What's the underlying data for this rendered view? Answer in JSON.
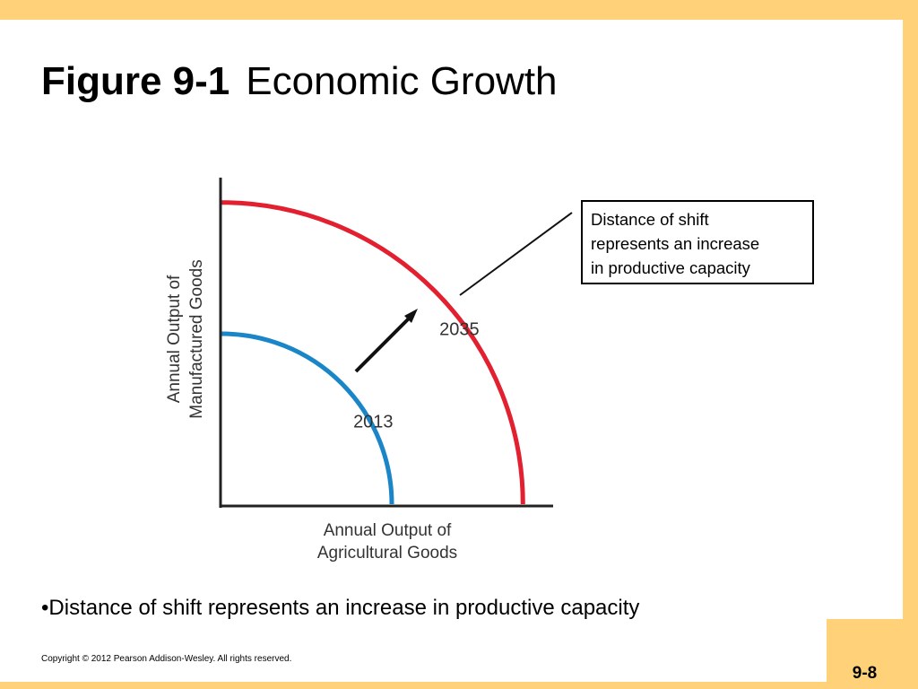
{
  "title": {
    "figure_number": "Figure 9-1",
    "text": "Economic Growth"
  },
  "chart_data": {
    "type": "line",
    "title": "",
    "xlabel": "Annual Output of Agricultural Goods",
    "ylabel": "Annual Output of Manufactured Goods",
    "xlabel_lines": [
      "Annual Output of",
      "Agricultural Goods"
    ],
    "ylabel_lines": [
      "Annual Output of",
      "Manufactured Goods"
    ],
    "series": [
      {
        "name": "2013",
        "color": "#1a86c7",
        "x_intercept": 1.0,
        "y_intercept": 1.0
      },
      {
        "name": "2035",
        "color": "#e2202f",
        "x_intercept": 1.77,
        "y_intercept": 1.77
      }
    ],
    "annotation_arrow": "outward shift from 2013 to 2035",
    "callout": [
      "Distance of shift",
      "represents an increase",
      "in productive capacity"
    ]
  },
  "bullet": "•Distance of shift represents an increase in productive capacity",
  "copyright": "Copyright © 2012 Pearson Addison-Wesley. All rights reserved.",
  "page_number": "9-8",
  "colors": {
    "frame": "#ffd27a",
    "curve_2013": "#1a86c7",
    "curve_2035": "#e2202f"
  }
}
